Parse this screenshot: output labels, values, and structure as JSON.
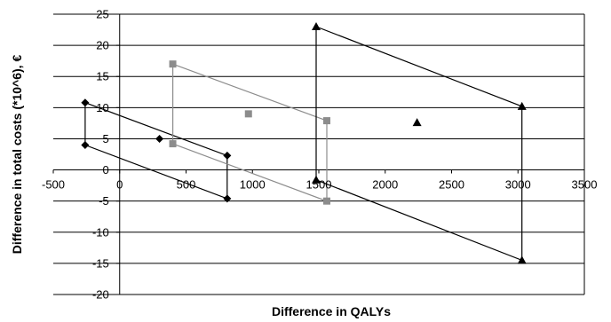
{
  "chart_data": {
    "type": "scatter",
    "title": "",
    "xlabel": "Difference in QALYs",
    "ylabel": "Difference in total costs (*10^6), €",
    "xlim": [
      -500,
      3500
    ],
    "ylim": [
      -20,
      25
    ],
    "xticks": [
      -500,
      0,
      500,
      1000,
      1500,
      2000,
      2500,
      3000,
      3500
    ],
    "yticks": [
      -20,
      -15,
      -10,
      -5,
      0,
      5,
      10,
      15,
      20,
      25
    ],
    "grid": "horizontal",
    "legend": "none",
    "series": [
      {
        "marker": "diamond",
        "color": "#000000",
        "points": [
          [
            -260,
            10.8
          ],
          [
            -260,
            4.0
          ],
          [
            300,
            5.0
          ],
          [
            810,
            2.3
          ],
          [
            810,
            -4.6
          ]
        ],
        "paths": [
          [
            [
              -260,
              10.8
            ],
            [
              810,
              2.3
            ],
            [
              810,
              -4.6
            ],
            [
              -260,
              4.0
            ],
            [
              -260,
              10.8
            ]
          ]
        ]
      },
      {
        "marker": "square",
        "color": "#8c8c8c",
        "points": [
          [
            400,
            17.0
          ],
          [
            400,
            4.2
          ],
          [
            970,
            9.0
          ],
          [
            1560,
            7.9
          ],
          [
            1560,
            -5.0
          ]
        ],
        "paths": [
          [
            [
              400,
              17.0
            ],
            [
              1560,
              7.9
            ],
            [
              1560,
              -5.0
            ],
            [
              400,
              4.2
            ],
            [
              400,
              17.0
            ]
          ]
        ]
      },
      {
        "marker": "triangle",
        "color": "#000000",
        "points": [
          [
            1480,
            23.0
          ],
          [
            1480,
            -1.6
          ],
          [
            2240,
            7.6
          ],
          [
            3030,
            10.2
          ],
          [
            3030,
            -14.5
          ]
        ],
        "paths": [
          [
            [
              1480,
              23.0
            ],
            [
              3030,
              10.2
            ],
            [
              3030,
              -14.5
            ],
            [
              1480,
              -1.6
            ],
            [
              1480,
              23.0
            ]
          ]
        ]
      }
    ]
  }
}
